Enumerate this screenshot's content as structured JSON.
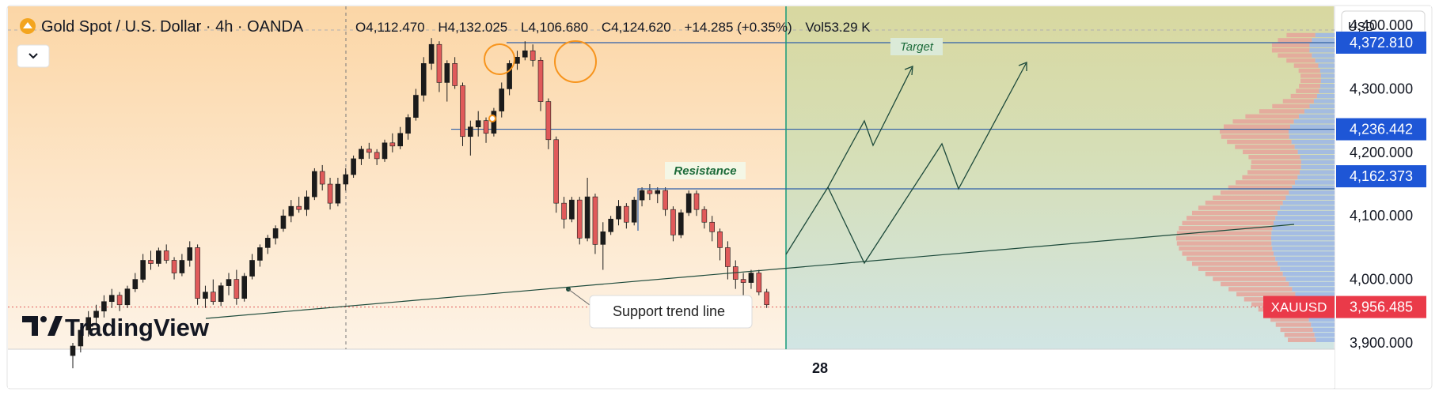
{
  "header": {
    "symbol_title": "Gold Spot / U.S. Dollar · 4h · OANDA",
    "open_label": "O",
    "open": "4,112.470",
    "high_label": "H",
    "high": "4,132.025",
    "low_label": "L",
    "low": "4,106.680",
    "close_label": "C",
    "close": "4,124.620",
    "change": "+14.285 (+0.35%)",
    "vol_label": "Vol",
    "volume": "53.29 K"
  },
  "currency_button": "USD",
  "branding": {
    "logo_text": "TradingView"
  },
  "annotations": {
    "target": "Target",
    "resistance": "Resistance",
    "support": "Support trend line"
  },
  "symbol_badge": "XAUUSD",
  "colors": {
    "up_candle": "#1b1b1b",
    "down_candle": "#e05a5a",
    "level_line": "#2f5fa8",
    "badge_blue": "#1e56d6",
    "badge_red": "#ea3a49",
    "highlight_circle": "#f7941d",
    "drawing_line": "#1d4a3b"
  },
  "chart_data": {
    "type": "candlestick",
    "instrument": "XAUUSD",
    "timeframe": "4h",
    "y_axis": {
      "ticks": [
        "4,400.000",
        "4,300.000",
        "4,200.000",
        "4,100.000",
        "4,000.000",
        "3,900.000"
      ],
      "tick_values": [
        4400,
        4300,
        4200,
        4100,
        4000,
        3900
      ],
      "ylim": [
        3890,
        4430
      ]
    },
    "x_axis": {
      "ticks": [
        "28"
      ]
    },
    "price_levels": [
      {
        "label": "4,372.810",
        "value": 4372.81
      },
      {
        "label": "4,236.442",
        "value": 4236.442
      },
      {
        "label": "4,162.373",
        "value": 4162.373
      }
    ],
    "current_price": {
      "label": "3,956.485",
      "value": 3956.485
    },
    "candles": [
      [
        3880,
        3900,
        3860,
        3895
      ],
      [
        3895,
        3925,
        3885,
        3920
      ],
      [
        3920,
        3950,
        3910,
        3940
      ],
      [
        3940,
        3960,
        3930,
        3950
      ],
      [
        3950,
        3975,
        3940,
        3965
      ],
      [
        3965,
        3985,
        3955,
        3975
      ],
      [
        3975,
        3980,
        3950,
        3960
      ],
      [
        3960,
        3990,
        3955,
        3985
      ],
      [
        3985,
        4010,
        3980,
        4000
      ],
      [
        4000,
        4040,
        3995,
        4030
      ],
      [
        4030,
        4045,
        4015,
        4025
      ],
      [
        4025,
        4050,
        4020,
        4045
      ],
      [
        4045,
        4055,
        4025,
        4030
      ],
      [
        4030,
        4035,
        4000,
        4010
      ],
      [
        4010,
        4040,
        4005,
        4030
      ],
      [
        4030,
        4060,
        4020,
        4050
      ],
      [
        4050,
        4055,
        3960,
        3970
      ],
      [
        3970,
        3990,
        3955,
        3980
      ],
      [
        3980,
        4000,
        3960,
        3965
      ],
      [
        3965,
        3995,
        3958,
        3990
      ],
      [
        3990,
        4010,
        3975,
        4000
      ],
      [
        4000,
        4015,
        3960,
        3970
      ],
      [
        3970,
        4010,
        3965,
        4005
      ],
      [
        4005,
        4040,
        4000,
        4030
      ],
      [
        4030,
        4055,
        4020,
        4050
      ],
      [
        4050,
        4070,
        4040,
        4065
      ],
      [
        4065,
        4085,
        4055,
        4080
      ],
      [
        4080,
        4110,
        4075,
        4100
      ],
      [
        4100,
        4125,
        4090,
        4115
      ],
      [
        4115,
        4130,
        4105,
        4110
      ],
      [
        4110,
        4140,
        4100,
        4130
      ],
      [
        4130,
        4175,
        4125,
        4170
      ],
      [
        4170,
        4180,
        4140,
        4150
      ],
      [
        4150,
        4160,
        4110,
        4120
      ],
      [
        4120,
        4160,
        4115,
        4150
      ],
      [
        4150,
        4175,
        4140,
        4165
      ],
      [
        4165,
        4195,
        4160,
        4190
      ],
      [
        4190,
        4210,
        4180,
        4205
      ],
      [
        4205,
        4215,
        4190,
        4200
      ],
      [
        4200,
        4205,
        4180,
        4190
      ],
      [
        4190,
        4220,
        4185,
        4215
      ],
      [
        4215,
        4230,
        4200,
        4210
      ],
      [
        4210,
        4240,
        4205,
        4230
      ],
      [
        4230,
        4260,
        4220,
        4255
      ],
      [
        4255,
        4300,
        4250,
        4290
      ],
      [
        4290,
        4350,
        4280,
        4340
      ],
      [
        4340,
        4380,
        4330,
        4370
      ],
      [
        4370,
        4375,
        4295,
        4310
      ],
      [
        4310,
        4345,
        4280,
        4340
      ],
      [
        4340,
        4350,
        4300,
        4305
      ],
      [
        4305,
        4310,
        4210,
        4225
      ],
      [
        4225,
        4250,
        4195,
        4240
      ],
      [
        4240,
        4265,
        4225,
        4250
      ],
      [
        4250,
        4255,
        4215,
        4230
      ],
      [
        4230,
        4270,
        4225,
        4265
      ],
      [
        4265,
        4310,
        4255,
        4300
      ],
      [
        4300,
        4345,
        4290,
        4340
      ],
      [
        4340,
        4360,
        4330,
        4350
      ],
      [
        4350,
        4375,
        4345,
        4360
      ],
      [
        4360,
        4370,
        4335,
        4345
      ],
      [
        4345,
        4350,
        4265,
        4280
      ],
      [
        4280,
        4285,
        4205,
        4220
      ],
      [
        4220,
        4225,
        4105,
        4120
      ],
      [
        4120,
        4130,
        4080,
        4095
      ],
      [
        4095,
        4130,
        4090,
        4125
      ],
      [
        4125,
        4130,
        4055,
        4065
      ],
      [
        4065,
        4160,
        4060,
        4130
      ],
      [
        4130,
        4135,
        4040,
        4055
      ],
      [
        4055,
        4090,
        4015,
        4075
      ],
      [
        4075,
        4100,
        4070,
        4095
      ],
      [
        4095,
        4125,
        4085,
        4115
      ],
      [
        4115,
        4120,
        4080,
        4090
      ],
      [
        4090,
        4130,
        4085,
        4125
      ],
      [
        4125,
        4145,
        4115,
        4140
      ],
      [
        4140,
        4150,
        4125,
        4135
      ],
      [
        4135,
        4145,
        4120,
        4140
      ],
      [
        4140,
        4145,
        4100,
        4110
      ],
      [
        4110,
        4115,
        4060,
        4070
      ],
      [
        4070,
        4110,
        4065,
        4105
      ],
      [
        4105,
        4140,
        4100,
        4135
      ],
      [
        4135,
        4140,
        4100,
        4110
      ],
      [
        4110,
        4115,
        4080,
        4090
      ],
      [
        4090,
        4100,
        4060,
        4075
      ],
      [
        4075,
        4080,
        4030,
        4050
      ],
      [
        4050,
        4060,
        4000,
        4020
      ],
      [
        4020,
        4030,
        3985,
        4000
      ],
      [
        4000,
        4010,
        3975,
        3995
      ],
      [
        3995,
        4015,
        3985,
        4010
      ],
      [
        4010,
        4015,
        3975,
        3980
      ],
      [
        3980,
        3985,
        3955,
        3960
      ]
    ]
  }
}
